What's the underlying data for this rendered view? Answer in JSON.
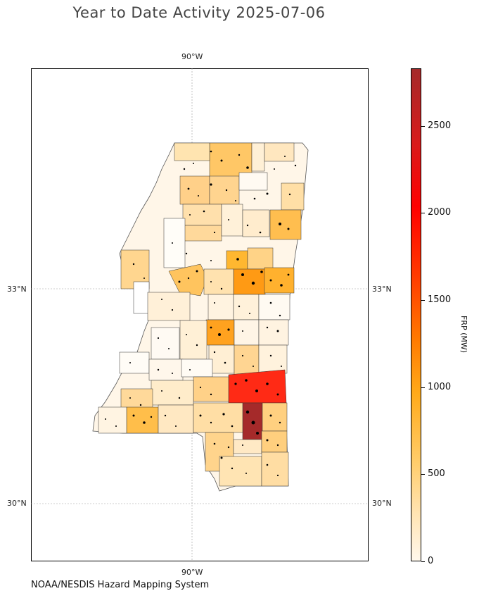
{
  "title": "Year to Date Activity 2025-07-06",
  "footer": "NOAA/NESDIS Hazard Mapping System",
  "map": {
    "lon_labels": {
      "top": "90°W",
      "bottom": "90°W"
    },
    "lat_labels": {
      "upper": "33°N",
      "lower": "30°N"
    },
    "region": "Mississippi counties"
  },
  "colorbar": {
    "label": "FRP (MW)",
    "ticks": [
      "0",
      "500",
      "1000",
      "1500",
      "2000",
      "2500"
    ],
    "min": 0,
    "max": 2830,
    "colors": [
      "#fff8ec",
      "#ffe3b0",
      "#ffcd6b",
      "#ffaa1a",
      "#ff7a00",
      "#ff3a00",
      "#ff0000",
      "#d81b1b",
      "#a52a2a"
    ]
  }
}
